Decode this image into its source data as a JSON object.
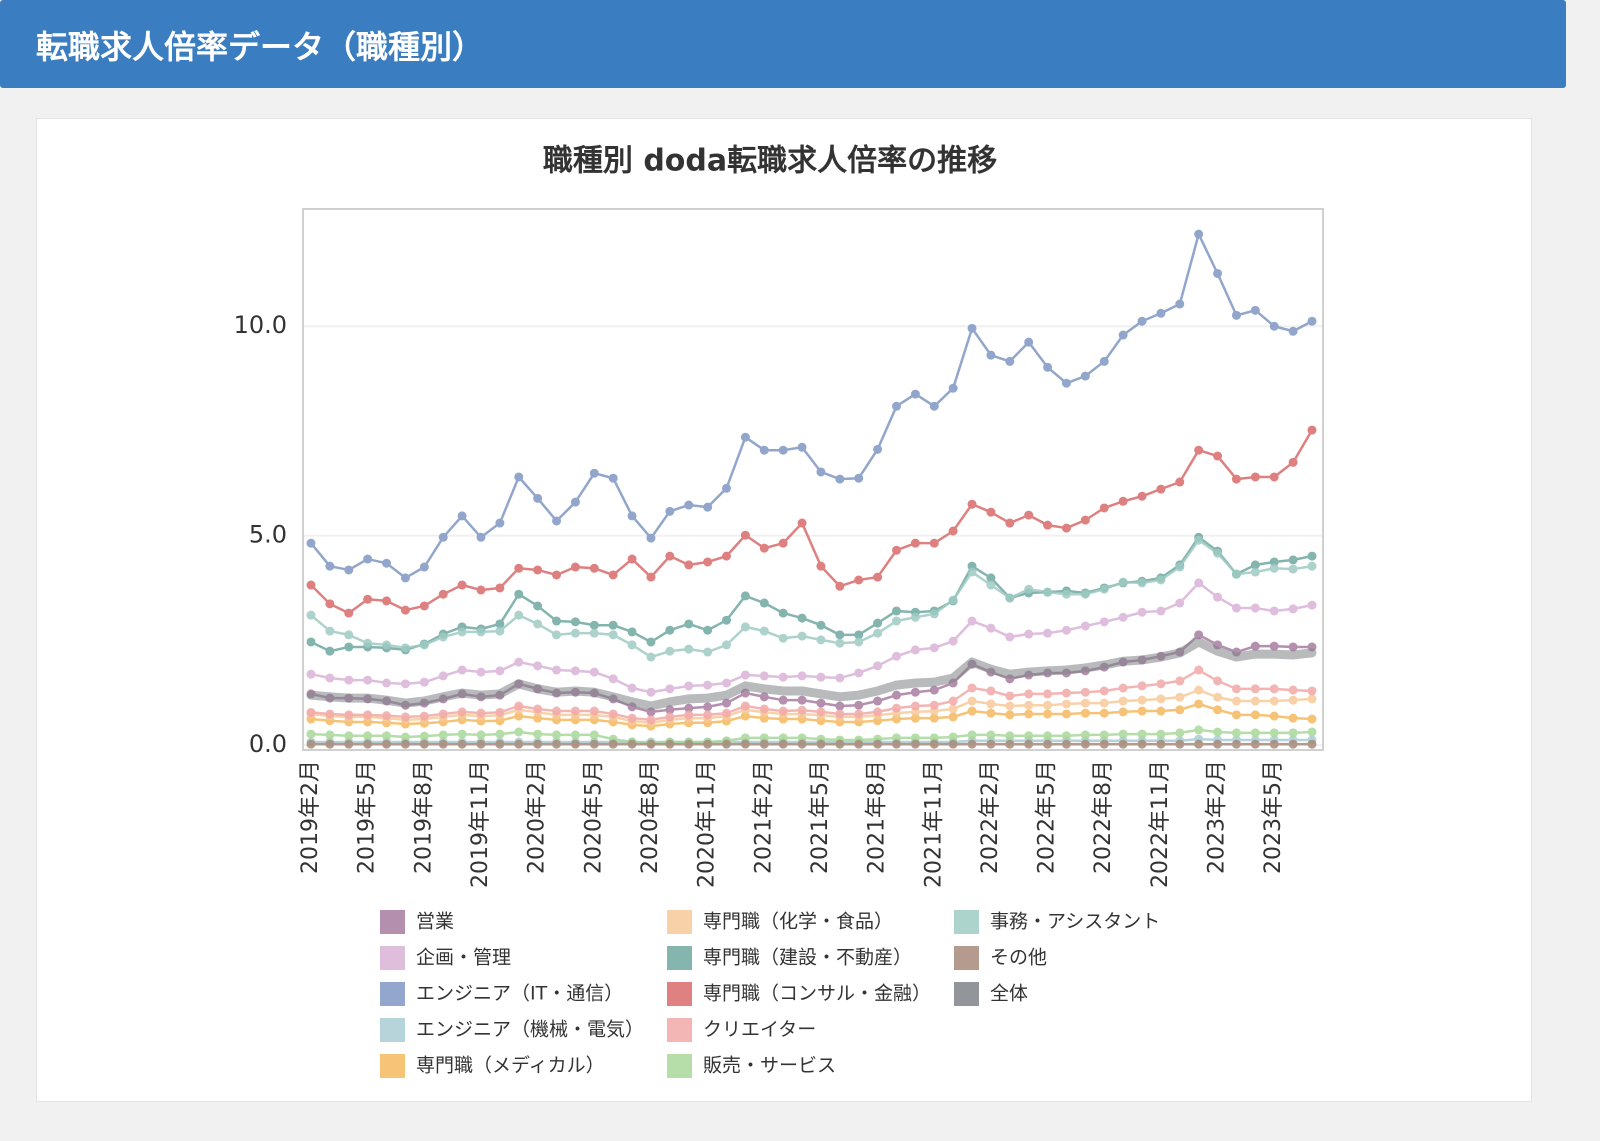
{
  "header": {
    "title": "転職求人倍率データ（職種別）"
  },
  "chart_data": {
    "type": "line",
    "title": "職種別 doda転職求人倍率の推移",
    "categories": [
      "2019年2月",
      null,
      null,
      "2019年5月",
      null,
      null,
      "2019年8月",
      null,
      null,
      "2019年11月",
      null,
      null,
      "2020年2月",
      null,
      null,
      "2020年5月",
      null,
      null,
      "2020年8月",
      null,
      null,
      "2020年11月",
      null,
      null,
      "2021年2月",
      null,
      null,
      "2021年5月",
      null,
      null,
      "2021年8月",
      null,
      null,
      "2021年11月",
      null,
      null,
      "2022年2月",
      null,
      null,
      "2022年5月",
      null,
      null,
      "2022年8月",
      null,
      null,
      "2022年11月",
      null,
      null,
      "2023年2月",
      null,
      null,
      "2023年5月",
      null,
      null
    ],
    "ylim": [
      -0.12,
      12.8
    ],
    "yticks": [
      {
        "value": 0,
        "label": "0.0"
      },
      {
        "value": 5,
        "label": "5.0"
      },
      {
        "value": 10,
        "label": "10.0"
      }
    ],
    "grid": true,
    "legend": "bottom",
    "series": [
      {
        "name": "営業",
        "color": "#a87ca0",
        "values": [
          1.22,
          1.12,
          1.12,
          1.1,
          1.05,
          0.95,
          1.0,
          1.1,
          1.22,
          1.15,
          1.19,
          1.46,
          1.34,
          1.24,
          1.26,
          1.24,
          1.1,
          0.91,
          0.79,
          0.84,
          0.88,
          0.91,
          1.0,
          1.24,
          1.15,
          1.07,
          1.07,
          1.0,
          0.93,
          0.95,
          1.05,
          1.19,
          1.26,
          1.31,
          1.48,
          1.93,
          1.74,
          1.58,
          1.67,
          1.72,
          1.72,
          1.77,
          1.86,
          1.98,
          2.03,
          2.12,
          2.22,
          2.63,
          2.39,
          2.22,
          2.36,
          2.36,
          2.34,
          2.34
        ]
      },
      {
        "name": "企画・管理",
        "color": "#d9b3d6",
        "values": [
          1.69,
          1.6,
          1.55,
          1.55,
          1.48,
          1.46,
          1.5,
          1.65,
          1.79,
          1.74,
          1.77,
          1.98,
          1.89,
          1.79,
          1.77,
          1.74,
          1.58,
          1.36,
          1.26,
          1.34,
          1.41,
          1.43,
          1.48,
          1.67,
          1.65,
          1.62,
          1.65,
          1.62,
          1.6,
          1.72,
          1.89,
          2.12,
          2.27,
          2.32,
          2.48,
          2.96,
          2.79,
          2.58,
          2.65,
          2.67,
          2.74,
          2.84,
          2.94,
          3.05,
          3.17,
          3.2,
          3.39,
          3.87,
          3.53,
          3.27,
          3.27,
          3.2,
          3.25,
          3.34
        ]
      },
      {
        "name": "エンジニア（IT・通信）",
        "color": "#8097c4",
        "values": [
          4.82,
          4.27,
          4.18,
          4.44,
          4.34,
          3.99,
          4.25,
          4.96,
          5.47,
          4.96,
          5.3,
          6.4,
          5.89,
          5.35,
          5.8,
          6.49,
          6.37,
          5.47,
          4.94,
          5.58,
          5.73,
          5.68,
          6.13,
          7.35,
          7.04,
          7.04,
          7.11,
          6.52,
          6.35,
          6.37,
          7.06,
          8.09,
          8.38,
          8.09,
          8.52,
          9.95,
          9.31,
          9.16,
          9.62,
          9.02,
          8.64,
          8.81,
          9.16,
          9.79,
          10.12,
          10.31,
          10.53,
          12.2,
          11.26,
          10.26,
          10.38,
          10.0,
          9.88,
          10.12
        ]
      },
      {
        "name": "エンジニア（機械・電気）",
        "color": "#a9ccd4",
        "values": [
          0.07,
          0.07,
          0.07,
          0.07,
          0.07,
          0.07,
          0.07,
          0.07,
          0.07,
          0.07,
          0.07,
          0.07,
          0.07,
          0.07,
          0.07,
          0.07,
          0.07,
          0.07,
          0.07,
          0.07,
          0.07,
          0.07,
          0.07,
          0.07,
          0.07,
          0.07,
          0.07,
          0.07,
          0.07,
          0.07,
          0.07,
          0.07,
          0.07,
          0.07,
          0.07,
          0.1,
          0.1,
          0.1,
          0.1,
          0.1,
          0.1,
          0.1,
          0.1,
          0.1,
          0.1,
          0.1,
          0.1,
          0.14,
          0.12,
          0.12,
          0.12,
          0.12,
          0.12,
          0.12
        ]
      },
      {
        "name": "専門職（メディカル）",
        "color": "#f5b95f",
        "values": [
          0.62,
          0.58,
          0.55,
          0.55,
          0.53,
          0.5,
          0.52,
          0.55,
          0.6,
          0.57,
          0.58,
          0.69,
          0.64,
          0.6,
          0.6,
          0.6,
          0.55,
          0.48,
          0.45,
          0.5,
          0.53,
          0.53,
          0.57,
          0.69,
          0.64,
          0.62,
          0.62,
          0.58,
          0.55,
          0.55,
          0.58,
          0.62,
          0.64,
          0.64,
          0.67,
          0.81,
          0.76,
          0.72,
          0.74,
          0.74,
          0.74,
          0.76,
          0.76,
          0.79,
          0.81,
          0.81,
          0.84,
          0.98,
          0.84,
          0.72,
          0.72,
          0.69,
          0.64,
          0.62
        ]
      },
      {
        "name": "専門職（化学・食品）",
        "color": "#f7c99a",
        "values": [
          0.74,
          0.69,
          0.67,
          0.67,
          0.64,
          0.6,
          0.62,
          0.67,
          0.72,
          0.69,
          0.71,
          0.84,
          0.78,
          0.72,
          0.72,
          0.72,
          0.67,
          0.57,
          0.53,
          0.6,
          0.64,
          0.64,
          0.69,
          0.84,
          0.78,
          0.74,
          0.74,
          0.71,
          0.67,
          0.67,
          0.71,
          0.76,
          0.79,
          0.81,
          0.86,
          1.05,
          0.98,
          0.93,
          0.95,
          0.95,
          0.98,
          1.0,
          1.0,
          1.05,
          1.07,
          1.1,
          1.14,
          1.31,
          1.14,
          1.05,
          1.05,
          1.05,
          1.07,
          1.1
        ]
      },
      {
        "name": "専門職（建設・不動産）",
        "color": "#6fa8a0",
        "values": [
          2.46,
          2.24,
          2.34,
          2.34,
          2.32,
          2.27,
          2.41,
          2.65,
          2.82,
          2.77,
          2.89,
          3.6,
          3.32,
          2.96,
          2.94,
          2.86,
          2.86,
          2.7,
          2.46,
          2.74,
          2.89,
          2.74,
          2.98,
          3.56,
          3.39,
          3.15,
          3.03,
          2.86,
          2.63,
          2.63,
          2.91,
          3.2,
          3.17,
          3.2,
          3.44,
          4.27,
          3.99,
          3.51,
          3.63,
          3.65,
          3.68,
          3.63,
          3.75,
          3.87,
          3.91,
          3.99,
          4.3,
          4.96,
          4.63,
          4.08,
          4.3,
          4.37,
          4.42,
          4.51
        ]
      },
      {
        "name": "専門職（コンサル・金融）",
        "color": "#d96b6b",
        "values": [
          3.82,
          3.37,
          3.15,
          3.48,
          3.44,
          3.22,
          3.32,
          3.6,
          3.82,
          3.7,
          3.75,
          4.22,
          4.18,
          4.06,
          4.25,
          4.22,
          4.06,
          4.44,
          4.01,
          4.51,
          4.3,
          4.37,
          4.51,
          5.01,
          4.7,
          4.82,
          5.3,
          4.27,
          3.79,
          3.94,
          4.01,
          4.65,
          4.82,
          4.82,
          5.11,
          5.75,
          5.56,
          5.3,
          5.49,
          5.25,
          5.18,
          5.37,
          5.66,
          5.82,
          5.94,
          6.11,
          6.28,
          7.04,
          6.9,
          6.35,
          6.4,
          6.4,
          6.75,
          7.52
        ]
      },
      {
        "name": "クリエイター",
        "color": "#f2a8a8",
        "values": [
          0.78,
          0.74,
          0.72,
          0.72,
          0.7,
          0.67,
          0.69,
          0.74,
          0.79,
          0.76,
          0.78,
          0.93,
          0.86,
          0.81,
          0.81,
          0.81,
          0.74,
          0.64,
          0.6,
          0.67,
          0.72,
          0.72,
          0.76,
          0.93,
          0.86,
          0.81,
          0.83,
          0.79,
          0.74,
          0.74,
          0.79,
          0.88,
          0.93,
          0.95,
          1.05,
          1.36,
          1.29,
          1.17,
          1.22,
          1.22,
          1.24,
          1.26,
          1.29,
          1.36,
          1.41,
          1.46,
          1.53,
          1.79,
          1.53,
          1.34,
          1.34,
          1.34,
          1.31,
          1.29
        ]
      },
      {
        "name": "販売・サービス",
        "color": "#a8d89a",
        "values": [
          0.26,
          0.24,
          0.22,
          0.22,
          0.22,
          0.19,
          0.21,
          0.24,
          0.26,
          0.24,
          0.26,
          0.31,
          0.26,
          0.24,
          0.24,
          0.24,
          0.14,
          0.07,
          0.05,
          0.07,
          0.07,
          0.07,
          0.1,
          0.17,
          0.17,
          0.17,
          0.17,
          0.14,
          0.12,
          0.12,
          0.14,
          0.17,
          0.17,
          0.17,
          0.19,
          0.24,
          0.24,
          0.22,
          0.22,
          0.22,
          0.22,
          0.24,
          0.24,
          0.26,
          0.26,
          0.26,
          0.29,
          0.36,
          0.31,
          0.29,
          0.29,
          0.29,
          0.29,
          0.31
        ]
      },
      {
        "name": "事務・アシスタント",
        "color": "#9fcbc4",
        "values": [
          3.1,
          2.72,
          2.63,
          2.43,
          2.39,
          2.32,
          2.39,
          2.58,
          2.7,
          2.7,
          2.72,
          3.1,
          2.89,
          2.63,
          2.67,
          2.67,
          2.63,
          2.39,
          2.1,
          2.24,
          2.29,
          2.22,
          2.39,
          2.82,
          2.72,
          2.55,
          2.6,
          2.51,
          2.43,
          2.46,
          2.67,
          2.96,
          3.05,
          3.13,
          3.46,
          4.13,
          3.82,
          3.51,
          3.72,
          3.65,
          3.6,
          3.6,
          3.72,
          3.89,
          3.87,
          3.94,
          4.25,
          4.89,
          4.58,
          4.08,
          4.13,
          4.22,
          4.2,
          4.27
        ]
      },
      {
        "name": "その他",
        "color": "#a88a7a",
        "values": [
          0.02,
          0.02,
          0.02,
          0.02,
          0.02,
          0.02,
          0.02,
          0.02,
          0.02,
          0.02,
          0.02,
          0.02,
          0.02,
          0.02,
          0.02,
          0.02,
          0.02,
          0.02,
          0.02,
          0.02,
          0.02,
          0.02,
          0.02,
          0.02,
          0.02,
          0.02,
          0.02,
          0.02,
          0.02,
          0.02,
          0.02,
          0.02,
          0.02,
          0.02,
          0.02,
          0.02,
          0.02,
          0.02,
          0.02,
          0.02,
          0.02,
          0.02,
          0.02,
          0.02,
          0.02,
          0.02,
          0.02,
          0.02,
          0.02,
          0.02,
          0.02,
          0.02,
          0.02,
          0.02
        ]
      },
      {
        "name": "全体",
        "color": "#7f8387",
        "values": [
          1.19,
          1.15,
          1.12,
          1.12,
          1.07,
          1.0,
          1.05,
          1.15,
          1.24,
          1.19,
          1.22,
          1.46,
          1.34,
          1.26,
          1.29,
          1.26,
          1.15,
          1.03,
          0.93,
          1.03,
          1.1,
          1.12,
          1.19,
          1.41,
          1.34,
          1.29,
          1.29,
          1.22,
          1.15,
          1.19,
          1.29,
          1.43,
          1.48,
          1.5,
          1.6,
          1.98,
          1.81,
          1.69,
          1.74,
          1.77,
          1.79,
          1.84,
          1.91,
          2.0,
          2.03,
          2.1,
          2.2,
          2.46,
          2.24,
          2.1,
          2.17,
          2.17,
          2.15,
          2.2
        ]
      }
    ]
  }
}
